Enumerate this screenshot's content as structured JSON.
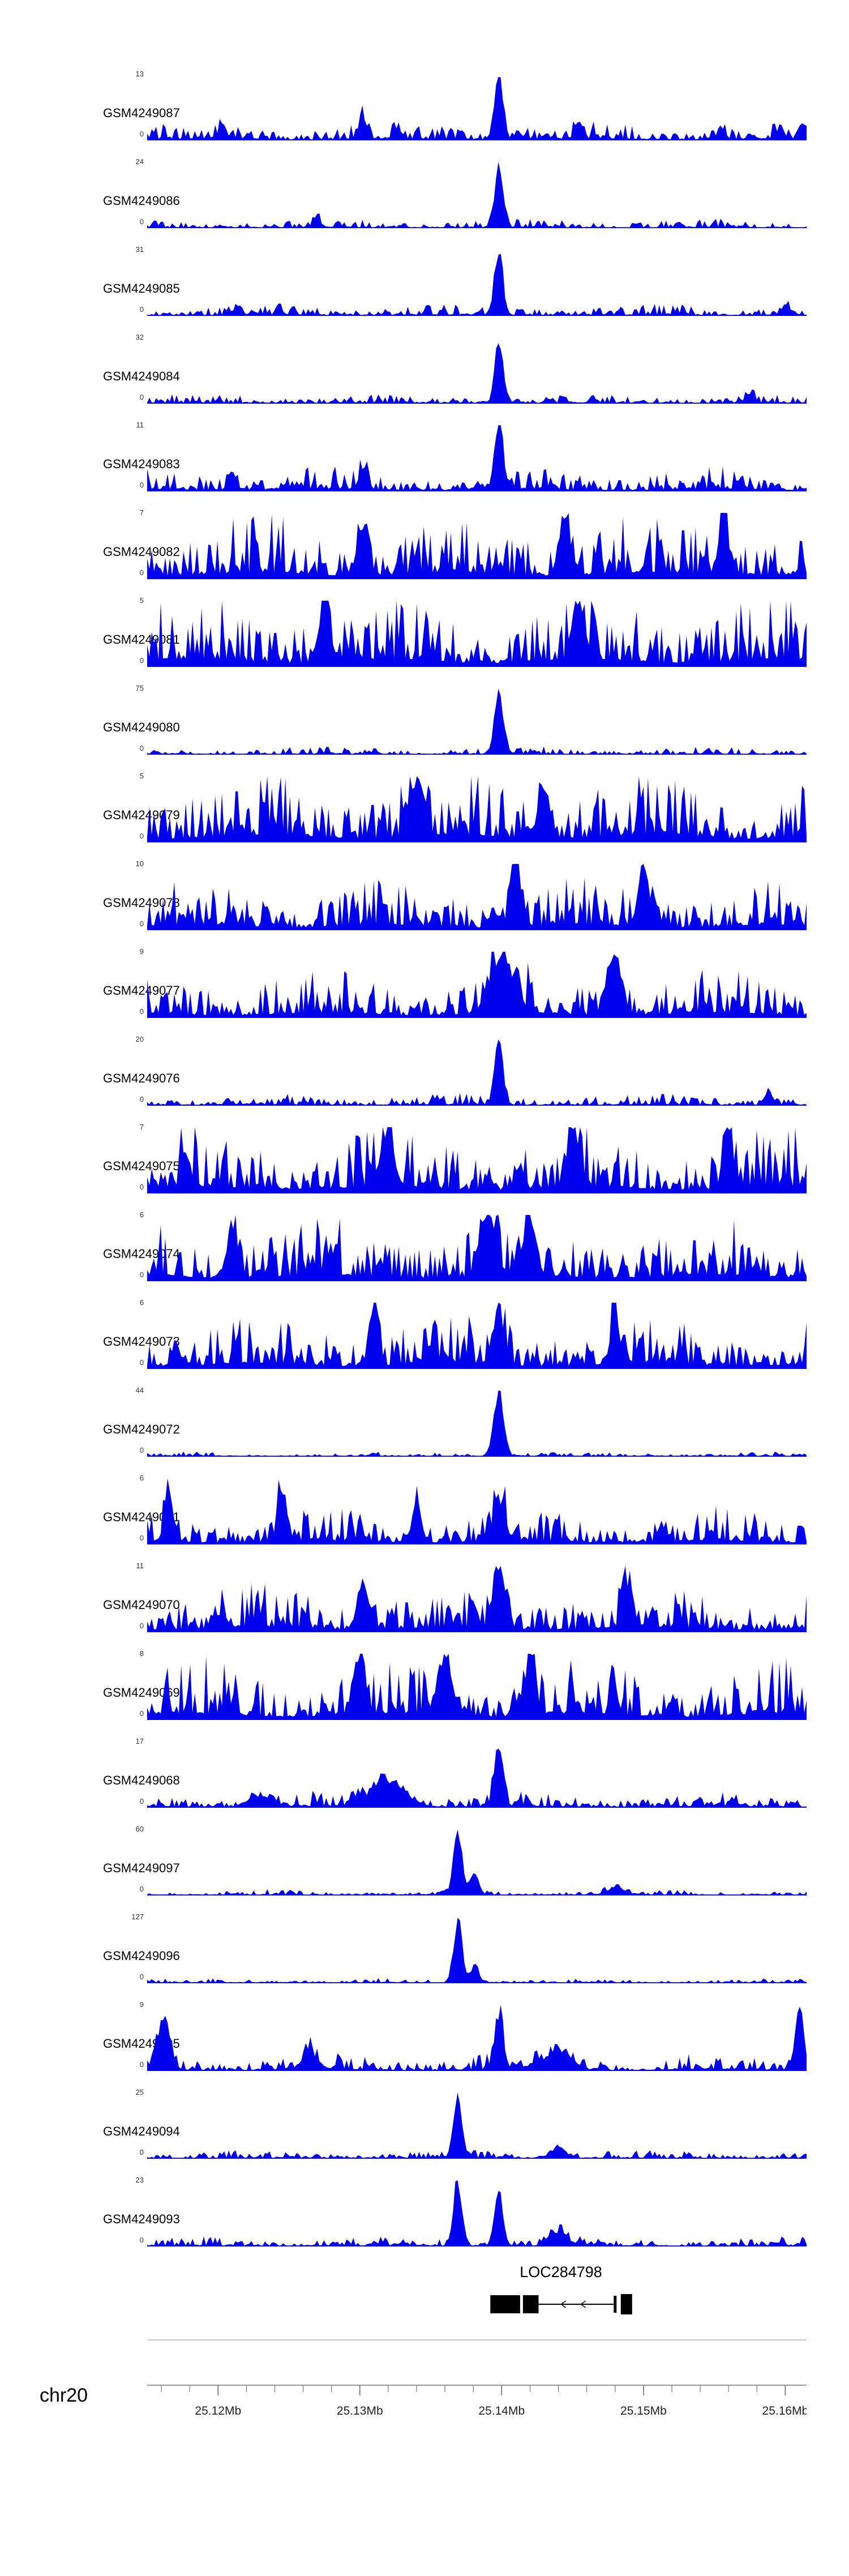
{
  "page": {
    "background": "#ffffff"
  },
  "chart_data": {
    "type": "area",
    "title": "",
    "chromosome": "chr20",
    "signal_color": "#0000EE",
    "x_axis": {
      "unit": "Mb",
      "range_mb": [
        25.115,
        25.1615
      ],
      "minor_tick_step_mb": 0.002,
      "major_ticks": [
        {
          "mb": 25.12,
          "label": "25.12Mb"
        },
        {
          "mb": 25.13,
          "label": "25.13Mb"
        },
        {
          "mb": 25.14,
          "label": "25.14Mb"
        },
        {
          "mb": 25.15,
          "label": "25.15Mb"
        },
        {
          "mb": 25.16,
          "label": "25.16Mb"
        }
      ]
    },
    "tracks": [
      {
        "label": "GSM4249087",
        "ymax": 13,
        "ymin": 0,
        "base": 0.15,
        "peaks": [
          [
            25.1398,
            0.97,
            0.0003
          ],
          [
            25.1302,
            0.33,
            0.00025
          ],
          [
            25.1203,
            0.22,
            0.00025
          ],
          [
            25.1555,
            0.18,
            0.00025
          ]
        ]
      },
      {
        "label": "GSM4249086",
        "ymax": 24,
        "ymin": 0,
        "base": 0.08,
        "peaks": [
          [
            25.1398,
            1.0,
            0.00028
          ],
          [
            25.127,
            0.1,
            0.0003
          ]
        ]
      },
      {
        "label": "GSM4249085",
        "ymax": 31,
        "ymin": 0,
        "base": 0.1,
        "peaks": [
          [
            25.1398,
            1.0,
            0.00028
          ],
          [
            25.16,
            0.15,
            0.0003
          ]
        ]
      },
      {
        "label": "GSM4249084",
        "ymax": 32,
        "ymin": 0,
        "base": 0.08,
        "peaks": [
          [
            25.1398,
            1.0,
            0.00028
          ],
          [
            25.1575,
            0.15,
            0.00025
          ]
        ]
      },
      {
        "label": "GSM4249083",
        "ymax": 11,
        "ymin": 0,
        "base": 0.2,
        "peaks": [
          [
            25.1398,
            1.0,
            0.0003
          ],
          [
            25.1302,
            0.28,
            0.0003
          ],
          [
            25.121,
            0.22,
            0.0003
          ]
        ]
      },
      {
        "label": "GSM4249082",
        "ymax": 7,
        "ymin": 0,
        "base": 0.52,
        "peaks": [
          [
            25.1302,
            0.75,
            0.0004
          ],
          [
            25.1445,
            0.85,
            0.0004
          ],
          [
            25.1556,
            0.95,
            0.0003
          ]
        ]
      },
      {
        "label": "GSM4249081",
        "ymax": 5,
        "ymin": 0,
        "base": 0.6,
        "peaks": [
          [
            25.1275,
            0.85,
            0.0004
          ],
          [
            25.1455,
            0.8,
            0.0004
          ]
        ]
      },
      {
        "label": "GSM4249080",
        "ymax": 75,
        "ymin": 0,
        "base": 0.07,
        "peaks": [
          [
            25.1398,
            1.0,
            0.0003
          ]
        ]
      },
      {
        "label": "GSM4249079",
        "ymax": 5,
        "ymin": 0,
        "base": 0.58,
        "peaks": [
          [
            25.134,
            0.9,
            0.0005
          ],
          [
            25.143,
            0.85,
            0.0004
          ]
        ]
      },
      {
        "label": "GSM4249078",
        "ymax": 10,
        "ymin": 0,
        "base": 0.42,
        "peaks": [
          [
            25.141,
            0.9,
            0.0004
          ],
          [
            25.15,
            0.8,
            0.0004
          ]
        ]
      },
      {
        "label": "GSM4249077",
        "ymax": 9,
        "ymin": 0,
        "base": 0.4,
        "peaks": [
          [
            25.14,
            0.85,
            0.0008
          ],
          [
            25.148,
            0.8,
            0.0005
          ]
        ]
      },
      {
        "label": "GSM4249076",
        "ymax": 20,
        "ymin": 0,
        "base": 0.1,
        "peaks": [
          [
            25.1398,
            1.0,
            0.0003
          ],
          [
            25.1588,
            0.2,
            0.0003
          ]
        ]
      },
      {
        "label": "GSM4249075",
        "ymax": 7,
        "ymin": 0,
        "base": 0.55,
        "peaks": [
          [
            25.132,
            0.85,
            0.0004
          ],
          [
            25.145,
            0.9,
            0.0004
          ],
          [
            25.156,
            0.85,
            0.0003
          ]
        ]
      },
      {
        "label": "GSM4249074",
        "ymax": 6,
        "ymin": 0,
        "base": 0.5,
        "peaks": [
          [
            25.139,
            0.95,
            0.0005
          ],
          [
            25.142,
            0.85,
            0.0004
          ],
          [
            25.121,
            0.75,
            0.0004
          ]
        ]
      },
      {
        "label": "GSM4249073",
        "ymax": 6,
        "ymin": 0,
        "base": 0.45,
        "peaks": [
          [
            25.131,
            0.9,
            0.0003
          ],
          [
            25.1398,
            0.85,
            0.0004
          ],
          [
            25.148,
            0.75,
            0.0003
          ]
        ]
      },
      {
        "label": "GSM4249072",
        "ymax": 44,
        "ymin": 0,
        "base": 0.04,
        "peaks": [
          [
            25.1398,
            1.0,
            0.00035
          ]
        ]
      },
      {
        "label": "GSM4249071",
        "ymax": 6,
        "ymin": 0,
        "base": 0.3,
        "peaks": [
          [
            25.1165,
            0.95,
            0.00025
          ],
          [
            25.1245,
            0.75,
            0.0003
          ],
          [
            25.134,
            0.65,
            0.0003
          ],
          [
            25.1398,
            0.6,
            0.0004
          ]
        ]
      },
      {
        "label": "GSM4249070",
        "ymax": 11,
        "ymin": 0,
        "base": 0.4,
        "peaks": [
          [
            25.1398,
            0.9,
            0.0004
          ],
          [
            25.1302,
            0.65,
            0.0004
          ],
          [
            25.149,
            0.75,
            0.0003
          ]
        ]
      },
      {
        "label": "GSM4249069",
        "ymax": 8,
        "ymin": 0,
        "base": 0.5,
        "peaks": [
          [
            25.136,
            0.9,
            0.0005
          ],
          [
            25.142,
            0.85,
            0.0004
          ],
          [
            25.13,
            0.8,
            0.0004
          ]
        ]
      },
      {
        "label": "GSM4249068",
        "ymax": 17,
        "ymin": 0,
        "base": 0.13,
        "peaks": [
          [
            25.1398,
            1.0,
            0.0003
          ],
          [
            25.132,
            0.4,
            0.0012
          ],
          [
            25.123,
            0.18,
            0.0008
          ]
        ]
      },
      {
        "label": "GSM4249097",
        "ymax": 60,
        "ymin": 0,
        "base": 0.05,
        "peaks": [
          [
            25.1369,
            1.0,
            0.0003
          ],
          [
            25.1381,
            0.3,
            0.0003
          ],
          [
            25.148,
            0.12,
            0.0006
          ]
        ]
      },
      {
        "label": "GSM4249096",
        "ymax": 127,
        "ymin": 0,
        "base": 0.04,
        "peaks": [
          [
            25.1369,
            1.0,
            0.0003
          ],
          [
            25.1381,
            0.28,
            0.0003
          ]
        ]
      },
      {
        "label": "GSM4249095",
        "ymax": 9,
        "ymin": 0,
        "base": 0.15,
        "peaks": [
          [
            25.1162,
            0.8,
            0.0004
          ],
          [
            25.1398,
            0.9,
            0.0003
          ],
          [
            25.144,
            0.32,
            0.0008
          ],
          [
            25.161,
            1.0,
            0.0003
          ],
          [
            25.1265,
            0.28,
            0.0005
          ]
        ]
      },
      {
        "label": "GSM4249094",
        "ymax": 25,
        "ymin": 0,
        "base": 0.07,
        "peaks": [
          [
            25.1369,
            1.0,
            0.0003
          ],
          [
            25.144,
            0.18,
            0.0005
          ]
        ]
      },
      {
        "label": "GSM4249093",
        "ymax": 23,
        "ymin": 0,
        "base": 0.08,
        "peaks": [
          [
            25.1369,
            1.0,
            0.0003
          ],
          [
            25.1398,
            0.85,
            0.0003
          ],
          [
            25.144,
            0.22,
            0.0006
          ]
        ]
      }
    ],
    "gene_track": {
      "gene": "LOC284798",
      "strand": "-",
      "exons_mb": [
        [
          25.1392,
          25.1413,
          32
        ],
        [
          25.1415,
          25.1426,
          32
        ],
        [
          25.1479,
          25.1481,
          30
        ],
        [
          25.1484,
          25.1492,
          36
        ]
      ],
      "intron_line_mb": [
        25.1426,
        25.1479
      ],
      "arrow_positions_mb": [
        25.1442,
        25.1456
      ]
    }
  }
}
